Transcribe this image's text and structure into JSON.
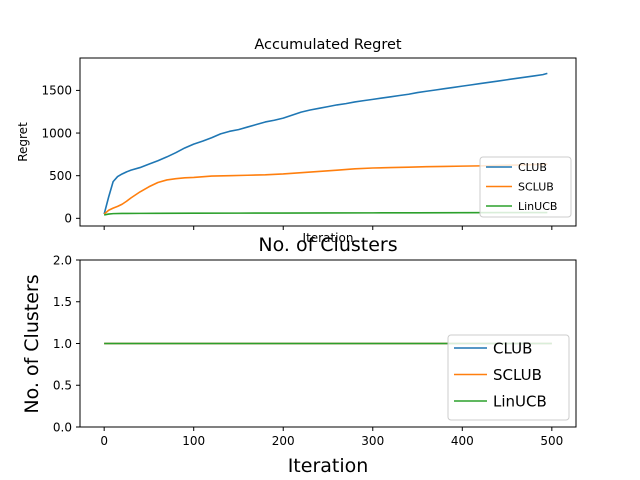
{
  "chart_data": [
    {
      "type": "line",
      "title": "Accumulated Regret",
      "xlabel": "Iteration",
      "ylabel": "Regret",
      "xlim": [
        -27,
        527
      ],
      "ylim": [
        -90,
        1880
      ],
      "xticks": [
        0,
        100,
        200,
        300,
        400,
        500
      ],
      "xtick_labels_shown": false,
      "yticks": [
        0,
        500,
        1000,
        1500
      ],
      "ytick_labels": [
        "0",
        "500",
        "1000",
        "1500"
      ],
      "grid": false,
      "legend_position": "lower-right",
      "series": [
        {
          "name": "CLUB",
          "color": "#1f77b4",
          "x": [
            0,
            5,
            10,
            15,
            20,
            25,
            30,
            40,
            50,
            60,
            70,
            80,
            90,
            100,
            110,
            120,
            130,
            140,
            150,
            160,
            170,
            180,
            190,
            200,
            210,
            220,
            230,
            240,
            250,
            260,
            270,
            280,
            290,
            300,
            310,
            320,
            330,
            340,
            350,
            360,
            370,
            380,
            390,
            400,
            410,
            420,
            430,
            440,
            450,
            460,
            470,
            480,
            490,
            495
          ],
          "values": [
            50,
            250,
            430,
            490,
            520,
            545,
            565,
            595,
            635,
            675,
            720,
            770,
            825,
            870,
            905,
            945,
            990,
            1020,
            1040,
            1070,
            1100,
            1130,
            1150,
            1175,
            1210,
            1245,
            1270,
            1290,
            1310,
            1330,
            1345,
            1365,
            1380,
            1395,
            1410,
            1425,
            1440,
            1455,
            1475,
            1490,
            1505,
            1520,
            1535,
            1550,
            1565,
            1580,
            1595,
            1610,
            1625,
            1640,
            1655,
            1670,
            1685,
            1700
          ]
        },
        {
          "name": "SCLUB",
          "color": "#ff7f0e",
          "x": [
            0,
            5,
            10,
            15,
            20,
            25,
            30,
            40,
            50,
            60,
            70,
            80,
            90,
            100,
            120,
            140,
            160,
            180,
            200,
            220,
            240,
            260,
            280,
            300,
            320,
            340,
            360,
            380,
            400,
            420,
            440,
            460,
            480,
            495
          ],
          "values": [
            50,
            95,
            120,
            140,
            165,
            200,
            240,
            310,
            370,
            420,
            450,
            465,
            475,
            480,
            495,
            500,
            505,
            510,
            520,
            535,
            550,
            565,
            580,
            590,
            595,
            600,
            605,
            608,
            612,
            615,
            620,
            625,
            630,
            635
          ]
        },
        {
          "name": "LinUCB",
          "color": "#2ca02c",
          "x": [
            0,
            5,
            10,
            20,
            40,
            60,
            100,
            150,
            200,
            250,
            300,
            350,
            400,
            450,
            495
          ],
          "values": [
            40,
            50,
            55,
            57,
            58,
            59,
            60,
            61,
            62,
            63,
            64,
            65,
            66,
            67,
            68
          ]
        }
      ]
    },
    {
      "type": "line",
      "title": "No. of Clusters",
      "xlabel": "Iteration",
      "ylabel": "No. of Clusters",
      "xlim": [
        -27,
        527
      ],
      "ylim": [
        0,
        2
      ],
      "xticks": [
        0,
        100,
        200,
        300,
        400,
        500
      ],
      "xtick_labels": [
        "0",
        "100",
        "200",
        "300",
        "400",
        "500"
      ],
      "yticks": [
        0,
        0.5,
        1,
        1.5,
        2
      ],
      "ytick_labels": [
        "0.0",
        "0.5",
        "1.0",
        "1.5",
        "2.0"
      ],
      "grid": false,
      "legend_position": "lower-right",
      "series": [
        {
          "name": "CLUB",
          "color": "#1f77b4",
          "x": [
            0,
            500
          ],
          "values": [
            1,
            1
          ]
        },
        {
          "name": "SCLUB",
          "color": "#ff7f0e",
          "x": [
            0,
            500
          ],
          "values": [
            1,
            1
          ]
        },
        {
          "name": "LinUCB",
          "color": "#2ca02c",
          "x": [
            0,
            500
          ],
          "values": [
            1,
            1
          ]
        }
      ]
    }
  ]
}
